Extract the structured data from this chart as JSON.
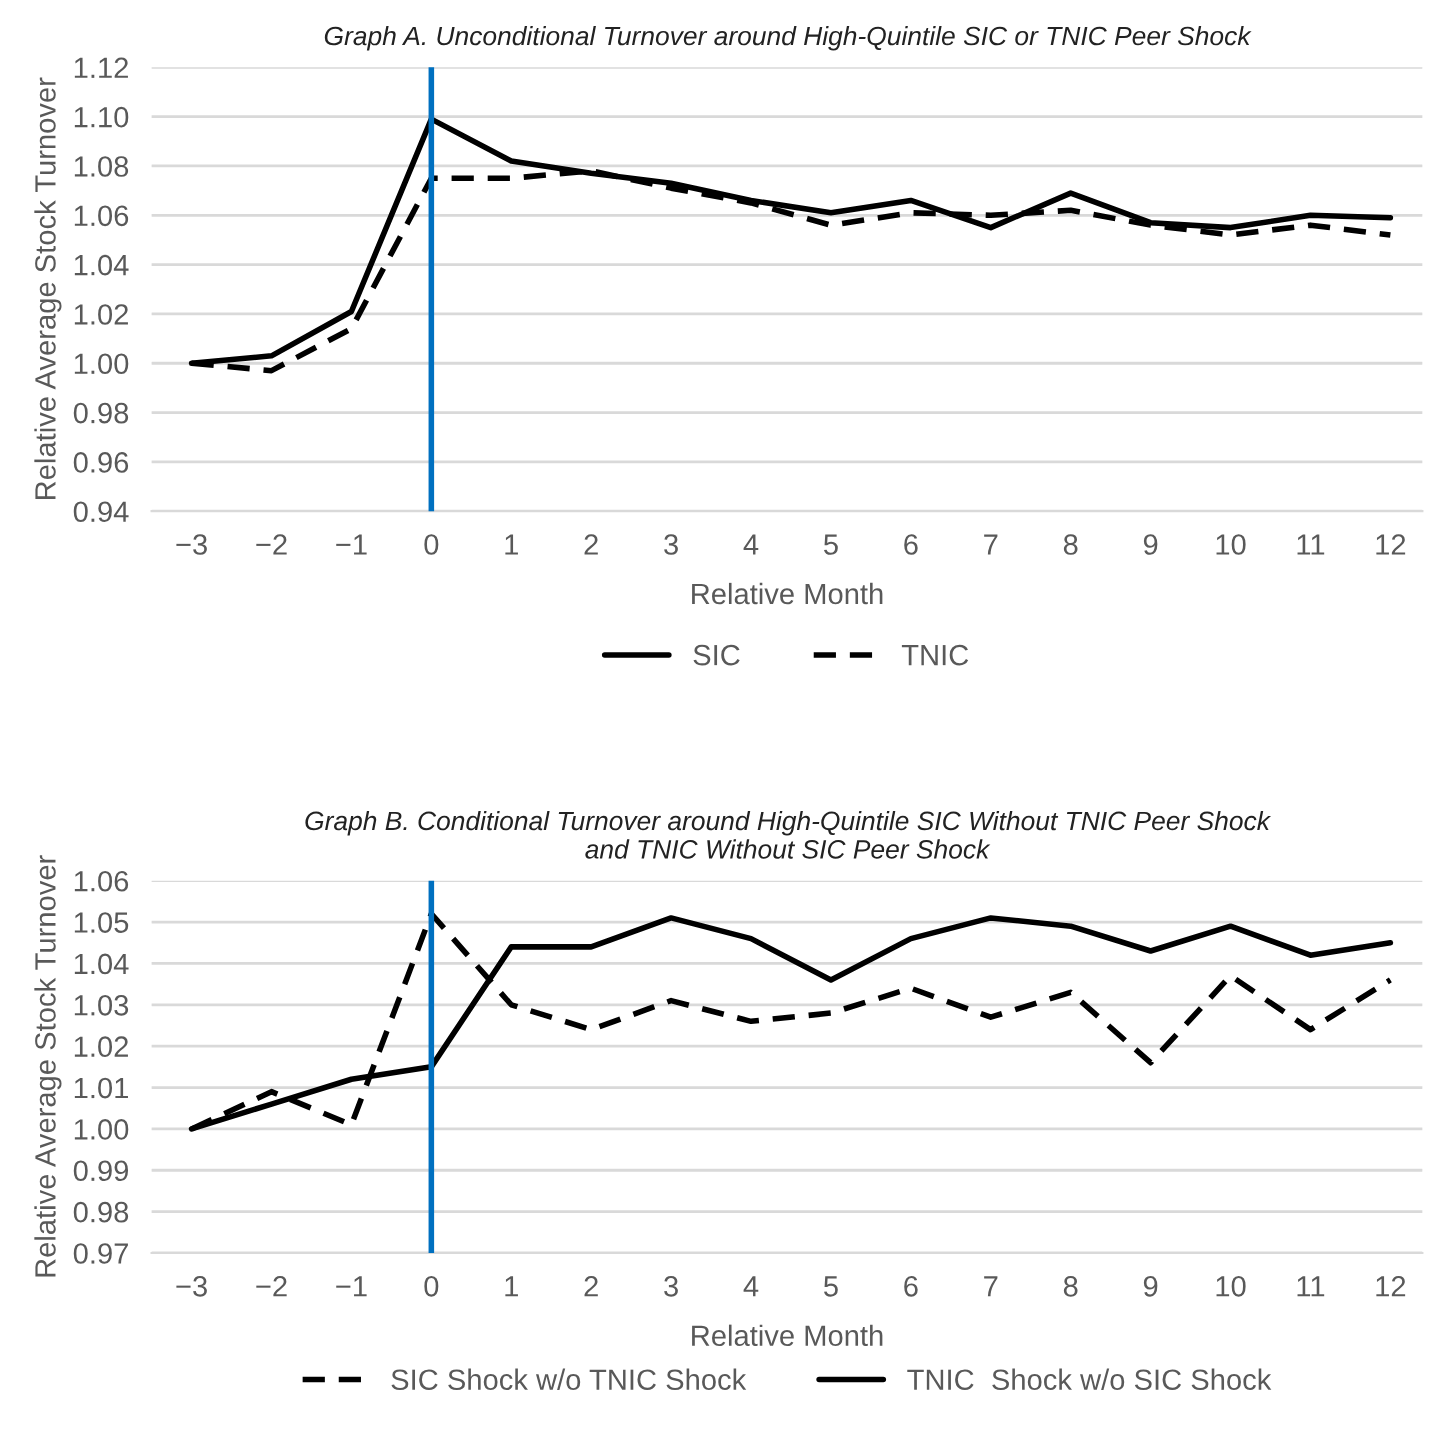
{
  "chart_data": [
    {
      "type": "line",
      "title": "Graph A. Unconditional Turnover around High-Quintile SIC or TNIC Peer Shock",
      "xlabel": "Relative Month",
      "ylabel": "Relative Average Stock Turnover",
      "x": [
        -3,
        -2,
        -1,
        0,
        1,
        2,
        3,
        4,
        5,
        6,
        7,
        8,
        9,
        10,
        11,
        12
      ],
      "xlim": [
        -3.5,
        12.4
      ],
      "xticks": [
        {
          "value": -3,
          "label": "−3"
        },
        {
          "value": -2,
          "label": "−2"
        },
        {
          "value": -1,
          "label": "−1"
        },
        0,
        1,
        2,
        3,
        4,
        5,
        6,
        7,
        8,
        9,
        10,
        11,
        12
      ],
      "ylim": [
        0.94,
        1.12
      ],
      "yticks": [
        {
          "value": 0.94,
          "label": "0.94"
        },
        {
          "value": 0.96,
          "label": "0.96"
        },
        {
          "value": 0.98,
          "label": "0.98"
        },
        {
          "value": 1.0,
          "label": "1.00"
        },
        {
          "value": 1.02,
          "label": "1.02"
        },
        {
          "value": 1.04,
          "label": "1.04"
        },
        {
          "value": 1.06,
          "label": "1.06"
        },
        {
          "value": 1.08,
          "label": "1.08"
        },
        {
          "value": 1.1,
          "label": "1.10"
        },
        {
          "value": 1.12,
          "label": "1.12"
        }
      ],
      "grid": "y",
      "legend": "bottom",
      "marker": "none",
      "ref_lines": [
        {
          "axis": "x",
          "value": 0,
          "color": "#0070c0"
        }
      ],
      "series": [
        {
          "name": "SIC",
          "color": "#000000",
          "line_style": "solid",
          "values": [
            1.0,
            1.003,
            1.021,
            1.099,
            1.082,
            1.077,
            1.073,
            1.066,
            1.061,
            1.066,
            1.055,
            1.069,
            1.057,
            1.055,
            1.06,
            1.059
          ]
        },
        {
          "name": "TNIC",
          "color": "#000000",
          "line_style": "dashed",
          "values": [
            1.0,
            0.997,
            1.014,
            1.075,
            1.075,
            1.078,
            1.071,
            1.065,
            1.056,
            1.061,
            1.06,
            1.062,
            1.056,
            1.052,
            1.056,
            1.052
          ]
        }
      ]
    },
    {
      "type": "line",
      "title": "Graph B. Conditional Turnover around High-Quintile SIC Without TNIC Peer Shock\nand TNIC Without SIC Peer Shock",
      "xlabel": "Relative Month",
      "ylabel": "Relative Average Stock Turnover",
      "x": [
        -3,
        -2,
        -1,
        0,
        1,
        2,
        3,
        4,
        5,
        6,
        7,
        8,
        9,
        10,
        11,
        12
      ],
      "xlim": [
        -3.5,
        12.4
      ],
      "xticks": [
        {
          "value": -3,
          "label": "−3"
        },
        {
          "value": -2,
          "label": "−2"
        },
        {
          "value": -1,
          "label": "−1"
        },
        0,
        1,
        2,
        3,
        4,
        5,
        6,
        7,
        8,
        9,
        10,
        11,
        12
      ],
      "ylim": [
        0.97,
        1.06
      ],
      "yticks": [
        {
          "value": 0.97,
          "label": "0.97"
        },
        {
          "value": 0.98,
          "label": "0.98"
        },
        {
          "value": 0.99,
          "label": "0.99"
        },
        {
          "value": 1.0,
          "label": "1.00"
        },
        {
          "value": 1.01,
          "label": "1.01"
        },
        {
          "value": 1.02,
          "label": "1.02"
        },
        {
          "value": 1.03,
          "label": "1.03"
        },
        {
          "value": 1.04,
          "label": "1.04"
        },
        {
          "value": 1.05,
          "label": "1.05"
        },
        {
          "value": 1.06,
          "label": "1.06"
        }
      ],
      "grid": "y",
      "legend": "bottom",
      "marker": "none",
      "ref_lines": [
        {
          "axis": "x",
          "value": 0,
          "color": "#0070c0"
        }
      ],
      "series": [
        {
          "name": "SIC Shock w/o TNIC Shock",
          "color": "#000000",
          "line_style": "dashed",
          "values": [
            1.0,
            1.009,
            1.001,
            1.052,
            1.03,
            1.024,
            1.031,
            1.026,
            1.028,
            1.034,
            1.027,
            1.033,
            1.016,
            1.037,
            1.024,
            1.036
          ]
        },
        {
          "name": "TNIC  Shock w/o SIC Shock",
          "color": "#000000",
          "line_style": "solid",
          "values": [
            1.0,
            1.006,
            1.012,
            1.015,
            1.044,
            1.044,
            1.051,
            1.046,
            1.036,
            1.046,
            1.051,
            1.049,
            1.043,
            1.049,
            1.042,
            1.045
          ]
        }
      ]
    }
  ]
}
